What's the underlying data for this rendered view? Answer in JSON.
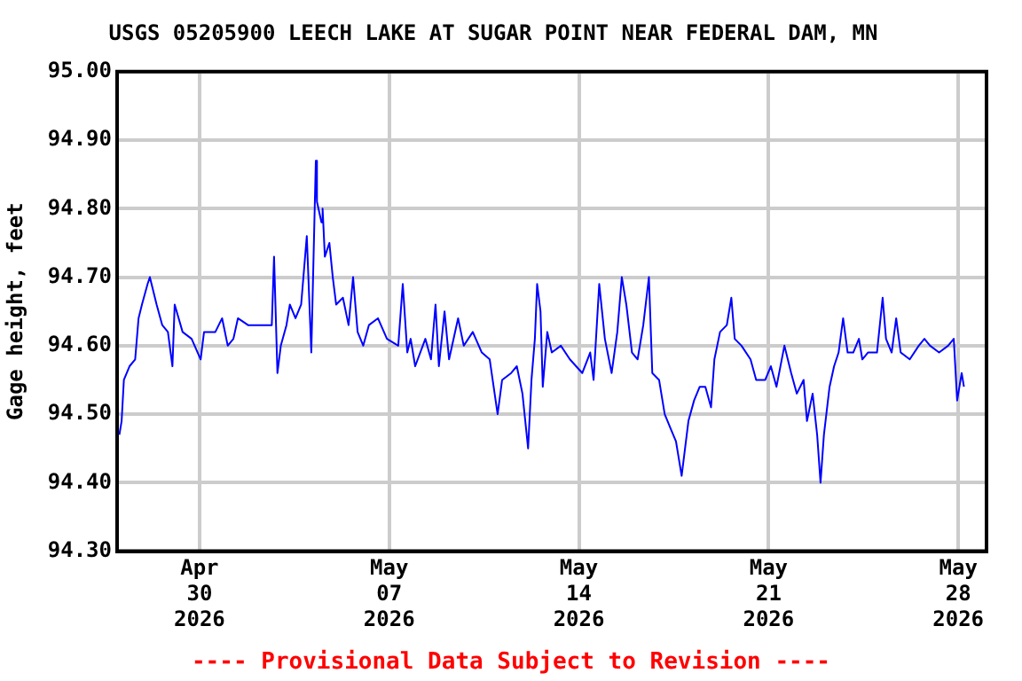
{
  "chart_data": {
    "type": "line",
    "title": "USGS 05205900 LEECH LAKE AT SUGAR POINT NEAR FEDERAL DAM, MN",
    "ylabel": "Gage height, feet",
    "annotations": [
      "---- Provisional Data Subject to Revision ----"
    ],
    "x": [
      "2026-04-27T01:00",
      "2026-04-27T03:00",
      "2026-04-27T05:00",
      "2026-04-27T10:00",
      "2026-04-27T15:00",
      "2026-04-27T18:00",
      "2026-04-27T21:00",
      "2026-04-28T02:00",
      "2026-04-28T04:00",
      "2026-04-28T10:00",
      "2026-04-28T15:00",
      "2026-04-28T20:00",
      "2026-04-29T00:00",
      "2026-04-29T02:00",
      "2026-04-29T09:00",
      "2026-04-29T17:00",
      "2026-04-30T01:00",
      "2026-04-30T04:00",
      "2026-04-30T14:00",
      "2026-04-30T20:00",
      "2026-05-01T01:00",
      "2026-05-01T06:00",
      "2026-05-01T10:00",
      "2026-05-01T19:00",
      "2026-05-02T08:00",
      "2026-05-02T16:00",
      "2026-05-02T18:00",
      "2026-05-02T21:00",
      "2026-05-03T00:00",
      "2026-05-03T05:00",
      "2026-05-03T08:00",
      "2026-05-03T13:00",
      "2026-05-03T18:00",
      "2026-05-03T23:00",
      "2026-05-04T03:00",
      "2026-05-04T07:00",
      "2026-05-04T08:00",
      "2026-05-04T12:00",
      "2026-05-04T13:00",
      "2026-05-04T15:00",
      "2026-05-04T19:00",
      "2026-05-04T22:00",
      "2026-05-05T01:00",
      "2026-05-05T07:00",
      "2026-05-05T12:00",
      "2026-05-05T16:00",
      "2026-05-05T20:00",
      "2026-05-06T01:00",
      "2026-05-06T06:00",
      "2026-05-06T14:00",
      "2026-05-06T22:00",
      "2026-05-07T08:00",
      "2026-05-07T12:00",
      "2026-05-07T16:00",
      "2026-05-07T19:00",
      "2026-05-07T23:00",
      "2026-05-08T08:00",
      "2026-05-08T13:00",
      "2026-05-08T17:00",
      "2026-05-08T20:00",
      "2026-05-09T01:00",
      "2026-05-09T05:00",
      "2026-05-09T13:00",
      "2026-05-09T18:00",
      "2026-05-10T02:00",
      "2026-05-10T10:00",
      "2026-05-10T17:00",
      "2026-05-11T00:00",
      "2026-05-11T04:00",
      "2026-05-11T12:00",
      "2026-05-11T17:00",
      "2026-05-11T22:00",
      "2026-05-12T03:00",
      "2026-05-12T06:00",
      "2026-05-12T09:00",
      "2026-05-12T11:00",
      "2026-05-12T14:00",
      "2026-05-12T16:00",
      "2026-05-12T20:00",
      "2026-05-13T00:00",
      "2026-05-13T08:00",
      "2026-05-13T16:00",
      "2026-05-14T03:00",
      "2026-05-14T10:00",
      "2026-05-14T13:00",
      "2026-05-14T18:00",
      "2026-05-14T23:00",
      "2026-05-15T05:00",
      "2026-05-15T10:00",
      "2026-05-15T14:00",
      "2026-05-15T18:00",
      "2026-05-15T23:00",
      "2026-05-16T04:00",
      "2026-05-16T09:00",
      "2026-05-16T14:00",
      "2026-05-16T17:00",
      "2026-05-16T23:00",
      "2026-05-17T04:00",
      "2026-05-17T09:00",
      "2026-05-17T14:00",
      "2026-05-17T19:00",
      "2026-05-18T01:00",
      "2026-05-18T06:00",
      "2026-05-18T11:00",
      "2026-05-18T16:00",
      "2026-05-18T21:00",
      "2026-05-19T00:00",
      "2026-05-19T05:00",
      "2026-05-19T11:00",
      "2026-05-19T15:00",
      "2026-05-19T18:00",
      "2026-05-20T00:00",
      "2026-05-20T08:00",
      "2026-05-20T13:00",
      "2026-05-20T21:00",
      "2026-05-21T02:00",
      "2026-05-21T07:00",
      "2026-05-21T14:00",
      "2026-05-21T20:00",
      "2026-05-22T01:00",
      "2026-05-22T07:00",
      "2026-05-22T10:00",
      "2026-05-22T15:00",
      "2026-05-22T19:00",
      "2026-05-22T22:00",
      "2026-05-23T01:00",
      "2026-05-23T06:00",
      "2026-05-23T10:00",
      "2026-05-23T14:00",
      "2026-05-23T18:00",
      "2026-05-23T22:00",
      "2026-05-24T03:00",
      "2026-05-24T08:00",
      "2026-05-24T11:00",
      "2026-05-24T16:00",
      "2026-05-25T00:00",
      "2026-05-25T05:00",
      "2026-05-25T08:00",
      "2026-05-25T13:00",
      "2026-05-25T17:00",
      "2026-05-25T21:00",
      "2026-05-26T05:00",
      "2026-05-26T13:00",
      "2026-05-26T18:00",
      "2026-05-26T23:00",
      "2026-05-27T07:00",
      "2026-05-27T15:00",
      "2026-05-27T20:00",
      "2026-05-27T23:00",
      "2026-05-28T03:00",
      "2026-05-28T05:00"
    ],
    "values": [
      94.47,
      94.49,
      94.55,
      94.57,
      94.58,
      94.64,
      94.66,
      94.69,
      94.7,
      94.66,
      94.63,
      94.62,
      94.57,
      94.66,
      94.62,
      94.61,
      94.58,
      94.62,
      94.62,
      94.64,
      94.6,
      94.61,
      94.64,
      94.63,
      94.63,
      94.63,
      94.73,
      94.56,
      94.6,
      94.63,
      94.66,
      94.64,
      94.66,
      94.76,
      94.59,
      94.87,
      94.81,
      94.78,
      94.8,
      94.73,
      94.75,
      94.7,
      94.66,
      94.67,
      94.63,
      94.7,
      94.62,
      94.6,
      94.63,
      94.64,
      94.61,
      94.6,
      94.69,
      94.59,
      94.61,
      94.57,
      94.61,
      94.58,
      94.66,
      94.57,
      94.65,
      94.58,
      94.64,
      94.6,
      94.62,
      94.59,
      94.58,
      94.5,
      94.55,
      94.56,
      94.57,
      94.53,
      94.45,
      94.55,
      94.61,
      94.69,
      94.65,
      94.54,
      94.62,
      94.59,
      94.6,
      94.58,
      94.56,
      94.59,
      94.55,
      94.69,
      94.61,
      94.56,
      94.62,
      94.7,
      94.66,
      94.59,
      94.58,
      94.63,
      94.7,
      94.56,
      94.55,
      94.5,
      94.48,
      94.46,
      94.41,
      94.49,
      94.52,
      94.54,
      94.54,
      94.51,
      94.58,
      94.62,
      94.63,
      94.67,
      94.61,
      94.6,
      94.58,
      94.55,
      94.55,
      94.57,
      94.54,
      94.6,
      94.56,
      94.53,
      94.55,
      94.49,
      94.53,
      94.47,
      94.4,
      94.47,
      94.54,
      94.57,
      94.59,
      94.64,
      94.59,
      94.59,
      94.61,
      94.58,
      94.59,
      94.59,
      94.67,
      94.61,
      94.59,
      94.64,
      94.59,
      94.58,
      94.6,
      94.61,
      94.6,
      94.59,
      94.6,
      94.61,
      94.52,
      94.56,
      94.54
    ],
    "color": "#0000ff",
    "line_style": "solid",
    "marker": "none",
    "grid": true,
    "xlim": [
      "2026-04-26T23:00",
      "2026-05-29T01:00"
    ],
    "xticks": [
      {
        "value": "2026-04-30",
        "label": "Apr\n30\n2026"
      },
      {
        "value": "2026-05-07",
        "label": "May\n07\n2026"
      },
      {
        "value": "2026-05-14",
        "label": "May\n14\n2026"
      },
      {
        "value": "2026-05-21",
        "label": "May\n21\n2026"
      },
      {
        "value": "2026-05-28",
        "label": "May\n28\n2026"
      }
    ],
    "ylim": [
      94.3,
      95.0
    ],
    "yticks": [
      {
        "value": 94.3,
        "label": "94.30"
      },
      {
        "value": 94.4,
        "label": "94.40"
      },
      {
        "value": 94.5,
        "label": "94.50"
      },
      {
        "value": 94.6,
        "label": "94.60"
      },
      {
        "value": 94.7,
        "label": "94.70"
      },
      {
        "value": 94.8,
        "label": "94.80"
      },
      {
        "value": 94.9,
        "label": "94.90"
      },
      {
        "value": 95.0,
        "label": "95.00"
      }
    ]
  }
}
